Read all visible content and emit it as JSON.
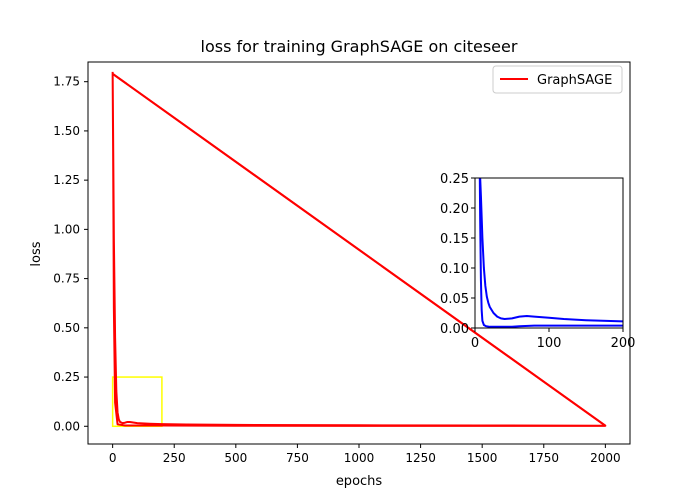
{
  "chart_data": {
    "type": "line",
    "title": "loss for training GraphSAGE on citeseer",
    "xlabel": "epochs",
    "ylabel": "loss",
    "xlim": [
      -100,
      2100
    ],
    "ylim": [
      -0.09,
      1.85
    ],
    "xticks": [
      0,
      250,
      500,
      750,
      1000,
      1250,
      1500,
      1750,
      2000
    ],
    "xtick_labels": [
      "0",
      "250",
      "500",
      "750",
      "1000",
      "1250",
      "1500",
      "1750",
      "2000"
    ],
    "yticks": [
      0.0,
      0.25,
      0.5,
      0.75,
      1.0,
      1.25,
      1.5,
      1.75
    ],
    "ytick_labels": [
      "0.00",
      "0.25",
      "0.50",
      "0.75",
      "1.00",
      "1.25",
      "1.50",
      "1.75"
    ],
    "grid": false,
    "legend": {
      "placement": "top-right",
      "entries": [
        "GraphSAGE"
      ]
    },
    "series": [
      {
        "name": "GraphSAGE",
        "color": "#ff0000",
        "x": [
          0,
          5,
          10,
          15,
          20,
          25,
          30,
          40,
          50,
          60,
          70,
          80,
          100,
          150,
          200,
          300,
          500,
          1000,
          1500,
          2000,
          0,
          2,
          5,
          10,
          20,
          50,
          100,
          200,
          500,
          1000,
          1500,
          2000
        ],
        "y": [
          1.8,
          0.95,
          0.45,
          0.18,
          0.07,
          0.035,
          0.022,
          0.016,
          0.018,
          0.022,
          0.022,
          0.02,
          0.016,
          0.013,
          0.011,
          0.009,
          0.007,
          0.005,
          0.004,
          0.003,
          1.79,
          1.4,
          0.6,
          0.12,
          0.01,
          0.004,
          0.004,
          0.004,
          0.003,
          0.002,
          0.002,
          0.002
        ]
      },
      {
        "name": "",
        "color": "#ff0000",
        "x": [
          0,
          2000
        ],
        "y": [
          1.79,
          0.003
        ]
      }
    ],
    "zoom_box": {
      "x": [
        0,
        200
      ],
      "y": [
        0,
        0.25
      ],
      "color": "#ffff00"
    },
    "inset": {
      "xlim": [
        0,
        200
      ],
      "ylim": [
        0,
        0.25
      ],
      "xticks": [
        0,
        100,
        200
      ],
      "xtick_labels": [
        "0",
        "100",
        "200"
      ],
      "yticks": [
        0.0,
        0.05,
        0.1,
        0.15,
        0.2,
        0.25
      ],
      "ytick_labels": [
        "0.00",
        "0.05",
        "0.10",
        "0.15",
        "0.20",
        "0.25"
      ],
      "series": [
        {
          "color": "#0000ff",
          "x": [
            7,
            8,
            10,
            12,
            14,
            16,
            18,
            20,
            25,
            30,
            35,
            40,
            50,
            60,
            70,
            80,
            100,
            120,
            150,
            200
          ],
          "y": [
            0.25,
            0.22,
            0.15,
            0.1,
            0.07,
            0.052,
            0.042,
            0.035,
            0.025,
            0.019,
            0.016,
            0.015,
            0.016,
            0.019,
            0.02,
            0.019,
            0.017,
            0.015,
            0.013,
            0.011
          ]
        },
        {
          "color": "#0000ff",
          "x": [
            6.5,
            7,
            8,
            9,
            10,
            12,
            15,
            20,
            30,
            50,
            60,
            80,
            100,
            150,
            200
          ],
          "y": [
            0.25,
            0.18,
            0.08,
            0.03,
            0.012,
            0.005,
            0.003,
            0.002,
            0.002,
            0.002,
            0.003,
            0.004,
            0.004,
            0.004,
            0.004
          ]
        }
      ]
    }
  }
}
